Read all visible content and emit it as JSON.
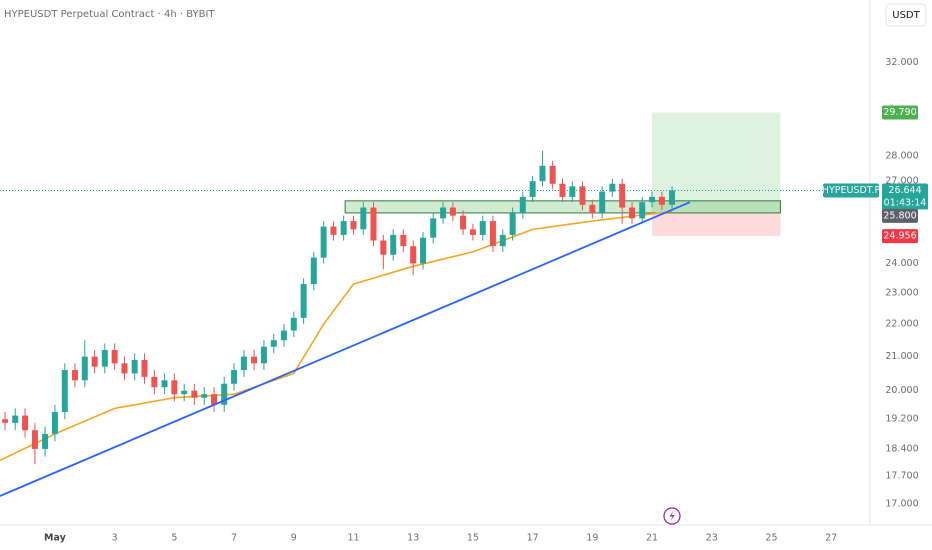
{
  "chart_data": {
    "type": "candlestick",
    "title": "HYPEUSDT Perpetual Contract · 4h · BYBIT",
    "currency": "USDT",
    "log": true,
    "grid": false,
    "up_color": "#26a69a",
    "down_color": "#ef5350",
    "xlim": [
      -0.84,
      28.3
    ],
    "xticks": [
      {
        "value": 1,
        "label": "May"
      },
      3,
      5,
      7,
      9,
      11,
      13,
      15,
      17,
      19,
      21,
      23,
      25,
      27
    ],
    "ylim": [
      16.5,
      35.0
    ],
    "yticks": [
      {
        "value": 17,
        "label": "17.000"
      },
      {
        "value": 17.7,
        "label": "17.700"
      },
      {
        "value": 18.4,
        "label": "18.400"
      },
      {
        "value": 19.2,
        "label": "19.200"
      },
      {
        "value": 20,
        "label": "20.000"
      },
      {
        "value": 21,
        "label": "21.000"
      },
      {
        "value": 22,
        "label": "22.000"
      },
      {
        "value": 23,
        "label": "23.000"
      },
      {
        "value": 24,
        "label": "24.000"
      },
      {
        "value": 27,
        "label": "27.000"
      },
      {
        "value": 28,
        "label": "28.000"
      },
      {
        "value": 32,
        "label": "32.000"
      }
    ],
    "x": [
      -0.67,
      -0.33,
      0,
      0.33,
      0.67,
      1,
      1.33,
      1.67,
      2,
      2.33,
      2.67,
      3,
      3.33,
      3.67,
      4,
      4.33,
      4.67,
      5,
      5.33,
      5.67,
      6,
      6.33,
      6.67,
      7,
      7.33,
      7.67,
      8,
      8.33,
      8.67,
      9,
      9.33,
      9.67,
      10,
      10.33,
      10.67,
      11,
      11.33,
      11.67,
      12,
      12.33,
      12.67,
      13,
      13.33,
      13.67,
      14,
      14.33,
      14.67,
      15,
      15.33,
      15.67,
      16,
      16.33,
      16.67,
      17,
      17.33,
      17.67,
      18,
      18.33,
      18.67,
      19,
      19.33,
      19.67,
      20,
      20.33,
      20.67,
      21,
      21.33,
      21.67
    ],
    "open": [
      19.2,
      19.1,
      19.3,
      18.9,
      18.4,
      18.8,
      19.4,
      20.6,
      20.3,
      21.0,
      20.7,
      21.2,
      20.8,
      20.5,
      20.9,
      20.4,
      20.1,
      20.3,
      19.9,
      20.0,
      19.8,
      19.9,
      19.6,
      20.2,
      20.6,
      21.0,
      20.8,
      21.3,
      21.5,
      21.8,
      22.2,
      23.3,
      24.2,
      25.3,
      25.0,
      25.5,
      25.2,
      26.0,
      24.8,
      24.3,
      25.0,
      24.6,
      24.0,
      24.9,
      25.6,
      26.0,
      25.7,
      25.2,
      25.0,
      25.5,
      24.6,
      25.0,
      25.8,
      26.4,
      27.0,
      27.6,
      26.9,
      26.4,
      26.8,
      26.1,
      25.8,
      26.6,
      26.9,
      26.0,
      25.6,
      26.2,
      26.4,
      26.1
    ],
    "high": [
      19.4,
      19.5,
      19.5,
      19.1,
      19.0,
      19.6,
      20.8,
      20.8,
      21.5,
      21.2,
      21.4,
      21.4,
      21.0,
      21.1,
      21.1,
      20.6,
      20.5,
      20.5,
      20.2,
      20.2,
      20.1,
      20.1,
      20.4,
      20.8,
      21.2,
      21.2,
      21.5,
      21.7,
      22.0,
      22.4,
      23.5,
      24.4,
      25.5,
      25.5,
      25.7,
      25.7,
      26.2,
      26.2,
      25.0,
      25.2,
      25.2,
      24.8,
      25.1,
      25.8,
      26.2,
      26.2,
      25.9,
      25.4,
      25.7,
      25.7,
      25.2,
      26.0,
      26.6,
      27.2,
      28.2,
      27.8,
      27.1,
      27.0,
      27.0,
      26.3,
      26.8,
      27.1,
      27.1,
      26.2,
      26.4,
      26.6,
      26.6,
      26.8
    ],
    "low": [
      18.9,
      18.9,
      18.7,
      18.0,
      18.2,
      18.6,
      19.2,
      20.1,
      20.1,
      20.5,
      20.5,
      20.6,
      20.3,
      20.3,
      20.2,
      19.9,
      19.9,
      19.7,
      19.7,
      19.6,
      19.6,
      19.4,
      19.4,
      20.0,
      20.4,
      20.6,
      20.6,
      21.1,
      21.3,
      21.6,
      22.0,
      23.1,
      24.0,
      24.8,
      24.8,
      25.0,
      25.0,
      24.6,
      23.8,
      24.1,
      24.4,
      23.6,
      23.8,
      24.7,
      25.4,
      25.5,
      25.0,
      24.8,
      24.8,
      24.4,
      24.4,
      24.8,
      25.6,
      26.2,
      26.8,
      26.7,
      26.2,
      26.2,
      25.9,
      25.6,
      25.6,
      26.4,
      25.4,
      25.4,
      25.4,
      26.0,
      25.9,
      25.9
    ],
    "close": [
      19.1,
      19.3,
      18.9,
      18.4,
      18.8,
      19.4,
      20.6,
      20.3,
      21.0,
      20.7,
      21.2,
      20.8,
      20.5,
      20.9,
      20.4,
      20.1,
      20.3,
      19.9,
      20.0,
      19.8,
      19.9,
      19.6,
      20.2,
      20.6,
      21.0,
      20.8,
      21.3,
      21.5,
      21.8,
      22.2,
      23.3,
      24.2,
      25.3,
      25.0,
      25.5,
      25.2,
      26.0,
      24.8,
      24.3,
      25.0,
      24.6,
      24.0,
      24.9,
      25.6,
      26.0,
      25.7,
      25.2,
      25.0,
      25.5,
      24.6,
      25.0,
      25.8,
      26.4,
      27.0,
      27.6,
      26.9,
      26.4,
      26.8,
      26.1,
      25.8,
      26.6,
      26.9,
      26.0,
      25.6,
      26.2,
      26.4,
      26.1,
      26.644
    ],
    "ema": {
      "color": "#f5a623",
      "x": [
        -0.84,
        1,
        3,
        5,
        7,
        9,
        10,
        11,
        13,
        15,
        17,
        19,
        20.5,
        21.67
      ],
      "values": [
        18.1,
        18.8,
        19.5,
        19.8,
        19.9,
        20.5,
        22.0,
        23.3,
        23.9,
        24.4,
        25.2,
        25.5,
        25.7,
        25.85
      ]
    },
    "trendline": {
      "color": "#2962ff",
      "x": [
        -0.84,
        22.27
      ],
      "values": [
        17.2,
        26.2
      ]
    },
    "zone": {
      "x": [
        10.72,
        25.3
      ],
      "values": [
        25.8,
        26.25
      ]
    },
    "position": {
      "x": [
        21.0,
        25.3
      ],
      "target": 29.79,
      "target_label": "29.790",
      "entry": 25.8,
      "entry_label": "25.800",
      "stop": 24.956
    },
    "symbol": "HYPEUSDT.P",
    "last_price": 26.644,
    "countdown": "01:43:14"
  }
}
